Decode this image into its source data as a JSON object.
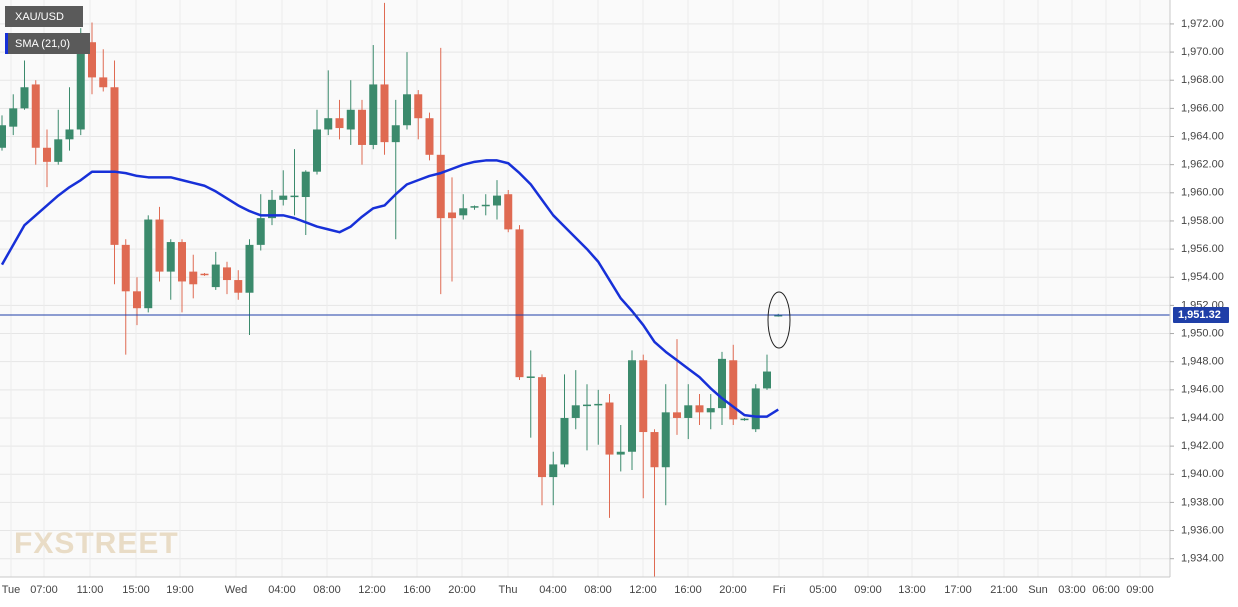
{
  "chart_data": {
    "type": "candlestick",
    "watermark": "FXSTREET",
    "candles": {
      "name": "XAU/USD",
      "up_color": "#3b8a6c",
      "down_color": "#df6a52",
      "open": [
        1963.2,
        1964.7,
        1966.0,
        1967.7,
        1963.2,
        1962.2,
        1963.8,
        1964.5,
        1970.7,
        1968.2,
        1967.5,
        1956.3,
        1953.0,
        1951.8,
        1958.1,
        1954.4,
        1956.5,
        1954.4,
        1954.25,
        1953.3,
        1954.7,
        1953.8,
        1952.9,
        1956.3,
        1958.2,
        1959.5,
        1959.7,
        1959.7,
        1961.5,
        1964.5,
        1965.3,
        1964.5,
        1965.9,
        1963.4,
        1967.7,
        1963.6,
        1964.8,
        1967.0,
        1965.3,
        1962.7,
        1958.6,
        1958.4,
        1959.0,
        1959.1,
        1959.1,
        1959.9,
        1957.4,
        1946.9,
        1946.9,
        1939.8,
        1940.7,
        1944.0,
        1944.9,
        1944.9,
        1945.1,
        1941.4,
        1941.6,
        1948.1,
        1943.0,
        1940.5,
        1944.4,
        1944.0,
        1944.9,
        1944.4,
        1944.7,
        1948.1,
        1943.9,
        1943.2,
        1946.1,
        1951.3
      ],
      "high": [
        1965.5,
        1967.0,
        1969.4,
        1968.0,
        1964.5,
        1965.9,
        1967.5,
        1971.7,
        1972.1,
        1970.2,
        1969.4,
        1956.7,
        1954.0,
        1958.4,
        1959.0,
        1956.7,
        1956.7,
        1955.6,
        1954.3,
        1955.8,
        1955.1,
        1954.5,
        1956.7,
        1959.9,
        1960.2,
        1961.6,
        1963.1,
        1961.6,
        1965.9,
        1968.7,
        1966.6,
        1968.0,
        1966.6,
        1970.5,
        1973.5,
        1966.6,
        1970.0,
        1967.3,
        1965.7,
        1970.3,
        1961.1,
        1959.9,
        1959.1,
        1959.9,
        1960.9,
        1960.2,
        1957.7,
        1948.8,
        1947.1,
        1941.6,
        1947.1,
        1947.4,
        1946.4,
        1946.0,
        1945.7,
        1943.5,
        1948.8,
        1948.5,
        1943.2,
        1946.4,
        1949.6,
        1946.4,
        1945.7,
        1945.7,
        1948.7,
        1949.2,
        1944.0,
        1946.4,
        1948.5,
        1951.4
      ],
      "low": [
        1963.0,
        1964.1,
        1965.9,
        1962.0,
        1960.4,
        1962.0,
        1963.0,
        1964.1,
        1967.0,
        1967.2,
        1953.5,
        1948.5,
        1950.6,
        1951.5,
        1953.7,
        1952.4,
        1951.5,
        1952.5,
        1954.1,
        1953.1,
        1952.8,
        1952.4,
        1949.9,
        1955.9,
        1957.7,
        1959.1,
        1958.4,
        1957.0,
        1961.3,
        1964.1,
        1963.8,
        1963.4,
        1962.0,
        1963.1,
        1962.7,
        1956.7,
        1964.5,
        1963.8,
        1962.3,
        1952.8,
        1953.7,
        1958.1,
        1958.8,
        1958.4,
        1958.1,
        1957.2,
        1946.7,
        1942.6,
        1937.8,
        1937.8,
        1940.5,
        1943.2,
        1941.7,
        1942.1,
        1936.9,
        1940.2,
        1940.3,
        1938.3,
        1932.7,
        1937.8,
        1942.8,
        1942.5,
        1943.5,
        1943.2,
        1943.5,
        1943.5,
        1943.8,
        1943.0,
        1946.0,
        1951.2
      ],
      "close": [
        1964.8,
        1966.0,
        1967.5,
        1963.2,
        1962.2,
        1963.8,
        1964.5,
        1970.7,
        1968.2,
        1967.5,
        1956.3,
        1953.0,
        1951.8,
        1958.1,
        1954.4,
        1956.5,
        1953.7,
        1953.5,
        1954.15,
        1954.9,
        1953.8,
        1952.9,
        1956.3,
        1958.2,
        1959.5,
        1959.8,
        1959.8,
        1961.5,
        1964.5,
        1965.3,
        1964.6,
        1965.9,
        1963.4,
        1967.7,
        1963.6,
        1964.8,
        1967.0,
        1965.3,
        1962.7,
        1958.2,
        1958.2,
        1958.9,
        1959.05,
        1959.15,
        1959.8,
        1957.4,
        1946.9,
        1946.95,
        1939.8,
        1940.7,
        1944.0,
        1944.9,
        1944.95,
        1945.0,
        1941.4,
        1941.6,
        1948.1,
        1943.0,
        1940.5,
        1944.4,
        1944.0,
        1944.9,
        1944.4,
        1944.7,
        1948.2,
        1943.9,
        1943.95,
        1946.1,
        1947.3,
        1951.32
      ]
    },
    "sma": {
      "name": "SMA (21,0)",
      "color": "#1730d8",
      "values": [
        1954.9,
        1956.3,
        1957.7,
        1958.4,
        1959.1,
        1959.8,
        1960.4,
        1960.9,
        1961.5,
        1961.5,
        1961.5,
        1961.4,
        1961.2,
        1961.1,
        1961.1,
        1961.1,
        1960.9,
        1960.7,
        1960.5,
        1960.1,
        1959.6,
        1959.1,
        1958.7,
        1958.4,
        1958.4,
        1958.4,
        1958.2,
        1957.9,
        1957.6,
        1957.4,
        1957.2,
        1957.6,
        1958.3,
        1958.9,
        1959.1,
        1959.9,
        1960.6,
        1960.9,
        1961.2,
        1961.4,
        1961.7,
        1962.0,
        1962.2,
        1962.3,
        1962.3,
        1962.1,
        1961.4,
        1960.6,
        1959.5,
        1958.4,
        1957.6,
        1956.8,
        1956.0,
        1955.1,
        1953.8,
        1952.5,
        1951.6,
        1950.6,
        1949.4,
        1948.7,
        1948.1,
        1947.5,
        1946.9,
        1946.1,
        1945.4,
        1944.8,
        1944.2,
        1944.1,
        1944.1,
        1944.6
      ]
    },
    "last_price": {
      "value": 1951.32,
      "label": "1,951.32",
      "color": "#1f3fa8"
    },
    "xtick_labels": [
      "Tue",
      "07:00",
      "11:00",
      "15:00",
      "19:00",
      "Wed",
      "04:00",
      "08:00",
      "12:00",
      "16:00",
      "20:00",
      "Thu",
      "04:00",
      "08:00",
      "12:00",
      "16:00",
      "20:00",
      "Fri",
      "05:00",
      "09:00",
      "13:00",
      "17:00",
      "21:00",
      "Sun",
      "03:00",
      "06:00",
      "09:00"
    ],
    "ylim": [
      1932.7,
      1973.7
    ],
    "yticks": [
      {
        "value": 1934,
        "label": "1,934.00"
      },
      {
        "value": 1936,
        "label": "1,936.00"
      },
      {
        "value": 1938,
        "label": "1,938.00"
      },
      {
        "value": 1940,
        "label": "1,940.00"
      },
      {
        "value": 1942,
        "label": "1,942.00"
      },
      {
        "value": 1944,
        "label": "1,944.00"
      },
      {
        "value": 1946,
        "label": "1,946.00"
      },
      {
        "value": 1948,
        "label": "1,948.00"
      },
      {
        "value": 1950,
        "label": "1,950.00"
      },
      {
        "value": 1952,
        "label": "1,952.00"
      },
      {
        "value": 1954,
        "label": "1,954.00"
      },
      {
        "value": 1956,
        "label": "1,956.00"
      },
      {
        "value": 1958,
        "label": "1,958.00"
      },
      {
        "value": 1960,
        "label": "1,960.00"
      },
      {
        "value": 1962,
        "label": "1,962.00"
      },
      {
        "value": 1964,
        "label": "1,964.00"
      },
      {
        "value": 1966,
        "label": "1,966.00"
      },
      {
        "value": 1968,
        "label": "1,968.00"
      },
      {
        "value": 1970,
        "label": "1,970.00"
      },
      {
        "value": 1972,
        "label": "1,972.00"
      }
    ],
    "grid": true
  }
}
